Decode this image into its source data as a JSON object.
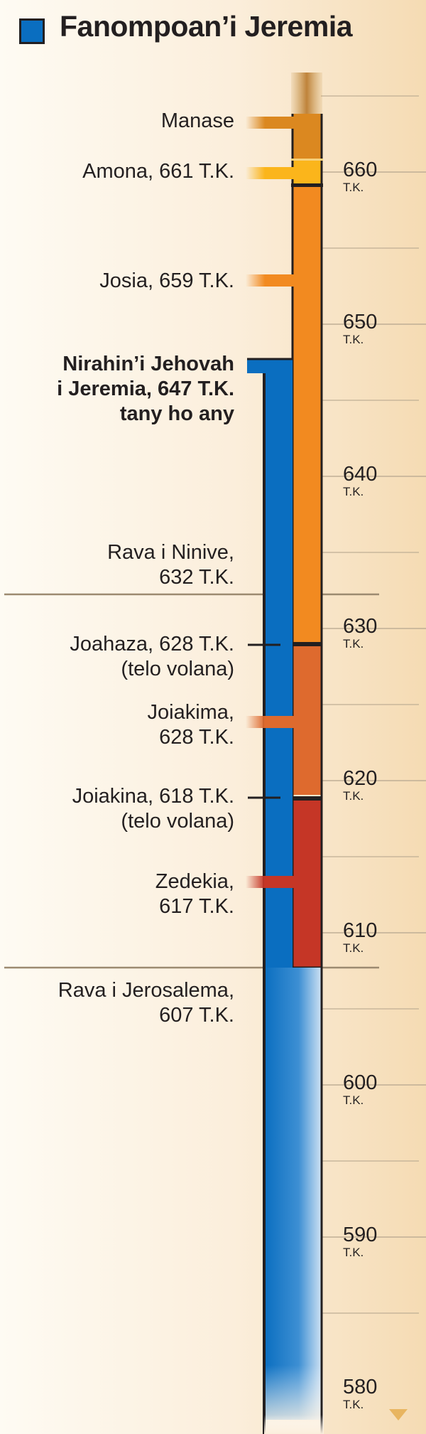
{
  "legend": {
    "title": "Fanompoan’i Jeremia",
    "color": "#0a6ec0"
  },
  "axis": {
    "era": "T.K.",
    "ticks": [
      660,
      650,
      640,
      630,
      620,
      610,
      600,
      590,
      580
    ],
    "range": [
      583,
      667
    ],
    "minor_step": 5
  },
  "reigns": [
    {
      "name": "Manase",
      "start": null,
      "end": 661,
      "color": "#db8820"
    },
    {
      "name": "Amona",
      "start": 661,
      "end": 659,
      "color": "#fbb51b"
    },
    {
      "name": "Josia",
      "start": 659,
      "end": 628,
      "color": "#f28a20"
    },
    {
      "name": "Joahaza",
      "start": 628,
      "end": 628,
      "color": "#231f20"
    },
    {
      "name": "Joiakima",
      "start": 628,
      "end": 618,
      "color": "#de6a2e"
    },
    {
      "name": "Joiakina",
      "start": 618,
      "end": 618,
      "color": "#231f20"
    },
    {
      "name": "Zedekia",
      "start": 617,
      "end": 607,
      "color": "#c53626"
    }
  ],
  "jeremiah_service": {
    "start": 647,
    "end": null,
    "color": "#0a6ec0"
  },
  "events": [
    {
      "lines": [
        "Manase"
      ],
      "year": null
    },
    {
      "lines": [
        "Amona, 661 T.K."
      ],
      "year": 661
    },
    {
      "lines": [
        "Josia, 659 T.K."
      ],
      "year": 659
    },
    {
      "lines": [
        "Nirahin’i Jehovah",
        "i Jeremia, 647 T.K.",
        "tany ho any"
      ],
      "year": 647,
      "bold": true
    },
    {
      "lines": [
        "Rava i Ninive,",
        "632 T.K."
      ],
      "year": 632,
      "divider": true
    },
    {
      "lines": [
        "Joahaza, 628 T.K.",
        "(telo volana)"
      ],
      "year": 628
    },
    {
      "lines": [
        "Joiakima,",
        "628 T.K."
      ],
      "year": 628
    },
    {
      "lines": [
        "Joiakina, 618 T.K.",
        "(telo volana)"
      ],
      "year": 618
    },
    {
      "lines": [
        "Zedekia,",
        "617 T.K."
      ],
      "year": 617
    },
    {
      "lines": [
        "Rava i Jerosalema,",
        "607 T.K."
      ],
      "year": 607,
      "divider": true
    }
  ]
}
